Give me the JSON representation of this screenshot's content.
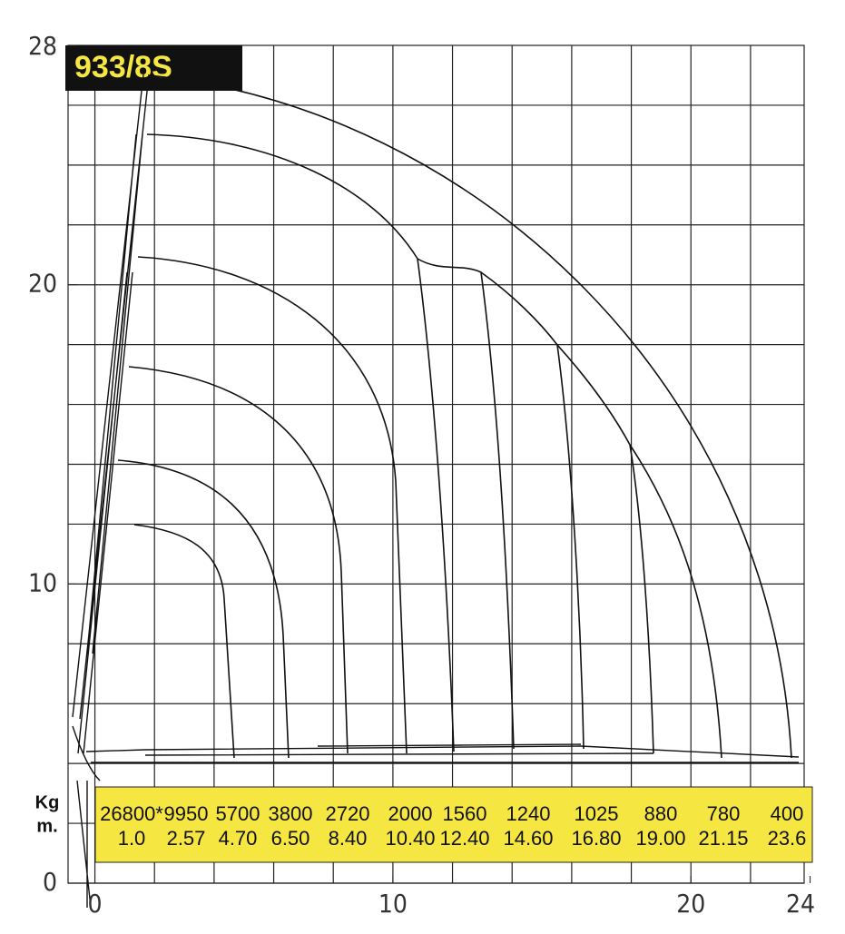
{
  "chart_data": {
    "type": "load-chart",
    "title": "933/8S",
    "row_labels": [
      "Kg",
      "m."
    ],
    "loads": [
      {
        "value": 26800,
        "label": "26800*"
      },
      9950,
      5700,
      3800,
      2720,
      2000,
      1560,
      1240,
      1025,
      880,
      780,
      400
    ],
    "radii": [
      {
        "value": 1,
        "label": "1.0"
      },
      2.57,
      {
        "value": 4.7,
        "label": "4.70"
      },
      {
        "value": 6.5,
        "label": "6.50"
      },
      {
        "value": 8.4,
        "label": "8.40"
      },
      {
        "value": 10.4,
        "label": "10.40"
      },
      {
        "value": 12.4,
        "label": "12.40"
      },
      {
        "value": 14.6,
        "label": "14.60"
      },
      {
        "value": 16.8,
        "label": "16.80"
      },
      {
        "value": 19,
        "label": "19.00"
      },
      21.15,
      23.6
    ],
    "xlim": [
      -0.9,
      23.8
    ],
    "xticks": [
      0,
      10,
      20,
      24
    ],
    "ylim": [
      0,
      28
    ],
    "yticks": [
      0,
      10,
      20,
      28
    ],
    "grid": true
  }
}
